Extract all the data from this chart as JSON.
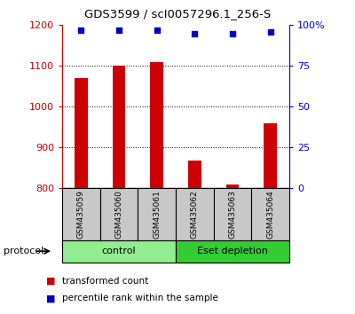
{
  "title": "GDS3599 / scI0057296.1_256-S",
  "samples": [
    "GSM435059",
    "GSM435060",
    "GSM435061",
    "GSM435062",
    "GSM435063",
    "GSM435064"
  ],
  "transformed_counts": [
    1070,
    1100,
    1110,
    868,
    810,
    960
  ],
  "percentile_ranks": [
    97,
    97,
    97,
    95,
    95,
    96
  ],
  "groups": [
    {
      "label": "control",
      "samples": [
        0,
        1,
        2
      ],
      "color": "#90EE90"
    },
    {
      "label": "Eset depletion",
      "samples": [
        3,
        4,
        5
      ],
      "color": "#33CC33"
    }
  ],
  "ylim_left": [
    800,
    1200
  ],
  "ylim_right": [
    0,
    100
  ],
  "yticks_left": [
    800,
    900,
    1000,
    1100,
    1200
  ],
  "yticks_right": [
    0,
    25,
    50,
    75,
    100
  ],
  "ytick_labels_right": [
    "0",
    "25",
    "50",
    "75",
    "100%"
  ],
  "bar_color": "#CC0000",
  "dot_color": "#0000CC",
  "background_color": "#ffffff",
  "label_red": "transformed count",
  "label_blue": "percentile rank within the sample",
  "group_label": "protocol",
  "sample_box_color": "#C8C8C8"
}
